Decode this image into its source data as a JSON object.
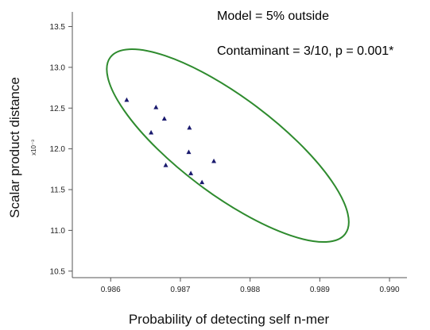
{
  "chart_data": {
    "type": "scatter",
    "title": "",
    "xlabel": "Probability of detecting self n-mer",
    "ylabel": "Scalar product distance",
    "y_multiplier": "x10⁻³",
    "xlim": [
      0.98545,
      0.99025
    ],
    "ylim": [
      10.42,
      13.68
    ],
    "x_ticks": [
      0.986,
      0.987,
      0.988,
      0.989,
      0.99
    ],
    "x_tick_labels": [
      "0.986",
      "0.987",
      "0.988",
      "0.989",
      "0.990"
    ],
    "y_ticks": [
      10.5,
      11.0,
      11.5,
      12.0,
      12.5,
      13.0,
      13.5
    ],
    "y_tick_labels": [
      "10.5",
      "11.0",
      "11.5",
      "12.0",
      "12.5",
      "13.0",
      "13.5"
    ],
    "grid": false,
    "marker_color": "#1a1a6e",
    "ellipse_color": "#2e8b2e",
    "points": [
      {
        "x": 0.98623,
        "y": 12.6
      },
      {
        "x": 0.98665,
        "y": 12.51
      },
      {
        "x": 0.98677,
        "y": 12.37
      },
      {
        "x": 0.98713,
        "y": 12.26
      },
      {
        "x": 0.98658,
        "y": 12.2
      },
      {
        "x": 0.98712,
        "y": 11.96
      },
      {
        "x": 0.98748,
        "y": 11.85
      },
      {
        "x": 0.98679,
        "y": 11.8
      },
      {
        "x": 0.98715,
        "y": 11.7
      },
      {
        "x": 0.98731,
        "y": 11.59
      }
    ],
    "ellipse": {
      "center_x": 0.98768,
      "center_y": 12.04,
      "note_line": "Model = 5% outside"
    },
    "annotations": [
      "Model = 5% outside",
      "Contaminant = 3/10, p = 0.001*"
    ]
  }
}
